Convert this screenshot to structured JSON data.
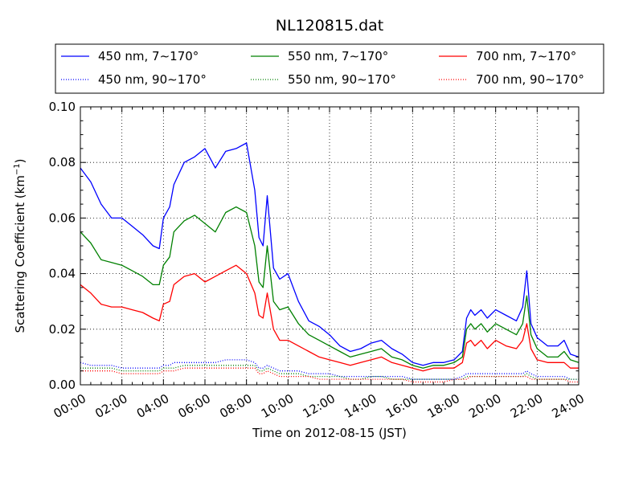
{
  "chart_data": {
    "type": "line",
    "title": "NL120815.dat",
    "xlabel": "Time on 2012-08-15 (JST)",
    "ylabel_main": "Scattering Coefficient (km",
    "ylabel_sup": "−1",
    "ylabel_end": ")",
    "xlim_hours": [
      0,
      24
    ],
    "ylim": [
      0.0,
      0.1
    ],
    "grid": true,
    "legend_position": "top",
    "x_tick_labels": [
      "00:00",
      "02:00",
      "04:00",
      "06:00",
      "08:00",
      "10:00",
      "12:00",
      "14:00",
      "16:00",
      "18:00",
      "20:00",
      "22:00",
      "24:00"
    ],
    "y_tick_labels": [
      "0.00",
      "0.02",
      "0.04",
      "0.06",
      "0.08",
      "0.10"
    ],
    "x_hours": [
      0,
      0.5,
      1,
      1.5,
      2,
      2.5,
      3,
      3.5,
      3.8,
      4,
      4.3,
      4.5,
      5,
      5.5,
      6,
      6.5,
      7,
      7.5,
      8,
      8.4,
      8.6,
      8.8,
      9,
      9.3,
      9.6,
      10,
      10.5,
      11,
      11.5,
      12,
      12.5,
      13,
      13.5,
      14,
      14.5,
      15,
      15.5,
      16,
      16.5,
      17,
      17.5,
      18,
      18.4,
      18.6,
      18.8,
      19,
      19.3,
      19.6,
      20,
      20.5,
      21,
      21.3,
      21.5,
      21.7,
      22,
      22.5,
      23,
      23.3,
      23.6,
      24
    ],
    "series": [
      {
        "name": "450 nm, 7∼170°",
        "color": "#0000ff",
        "style": "solid",
        "values": [
          0.078,
          0.073,
          0.065,
          0.06,
          0.06,
          0.057,
          0.054,
          0.05,
          0.049,
          0.06,
          0.064,
          0.072,
          0.08,
          0.082,
          0.085,
          0.078,
          0.084,
          0.085,
          0.087,
          0.07,
          0.053,
          0.05,
          0.068,
          0.042,
          0.038,
          0.04,
          0.03,
          0.023,
          0.021,
          0.018,
          0.014,
          0.012,
          0.013,
          0.015,
          0.016,
          0.013,
          0.011,
          0.008,
          0.007,
          0.008,
          0.008,
          0.009,
          0.012,
          0.024,
          0.027,
          0.025,
          0.027,
          0.024,
          0.027,
          0.025,
          0.023,
          0.028,
          0.041,
          0.022,
          0.017,
          0.014,
          0.014,
          0.016,
          0.011,
          0.01
        ]
      },
      {
        "name": "550 nm, 7∼170°",
        "color": "#008000",
        "style": "solid",
        "values": [
          0.055,
          0.051,
          0.045,
          0.044,
          0.043,
          0.041,
          0.039,
          0.036,
          0.036,
          0.043,
          0.046,
          0.055,
          0.059,
          0.061,
          0.058,
          0.055,
          0.062,
          0.064,
          0.062,
          0.05,
          0.037,
          0.035,
          0.05,
          0.03,
          0.027,
          0.028,
          0.022,
          0.018,
          0.016,
          0.014,
          0.012,
          0.01,
          0.011,
          0.012,
          0.013,
          0.01,
          0.009,
          0.007,
          0.006,
          0.007,
          0.007,
          0.008,
          0.01,
          0.02,
          0.022,
          0.02,
          0.022,
          0.019,
          0.022,
          0.02,
          0.018,
          0.022,
          0.032,
          0.018,
          0.013,
          0.01,
          0.01,
          0.012,
          0.009,
          0.008
        ]
      },
      {
        "name": "700 nm, 7∼170°",
        "color": "#ff0000",
        "style": "solid",
        "values": [
          0.036,
          0.033,
          0.029,
          0.028,
          0.028,
          0.027,
          0.026,
          0.024,
          0.023,
          0.029,
          0.03,
          0.036,
          0.039,
          0.04,
          0.037,
          0.039,
          0.041,
          0.043,
          0.04,
          0.033,
          0.025,
          0.024,
          0.033,
          0.02,
          0.016,
          0.016,
          0.014,
          0.012,
          0.01,
          0.009,
          0.008,
          0.007,
          0.008,
          0.009,
          0.01,
          0.008,
          0.007,
          0.006,
          0.005,
          0.006,
          0.006,
          0.006,
          0.008,
          0.015,
          0.016,
          0.014,
          0.016,
          0.013,
          0.016,
          0.014,
          0.013,
          0.016,
          0.022,
          0.013,
          0.009,
          0.008,
          0.008,
          0.008,
          0.006,
          0.006
        ]
      },
      {
        "name": "450 nm, 90∼170°",
        "color": "#0000ff",
        "style": "dotted",
        "values": [
          0.008,
          0.007,
          0.007,
          0.007,
          0.006,
          0.006,
          0.006,
          0.006,
          0.006,
          0.007,
          0.007,
          0.008,
          0.008,
          0.008,
          0.008,
          0.008,
          0.009,
          0.009,
          0.009,
          0.008,
          0.006,
          0.006,
          0.007,
          0.006,
          0.005,
          0.005,
          0.005,
          0.004,
          0.004,
          0.004,
          0.003,
          0.003,
          0.003,
          0.003,
          0.003,
          0.003,
          0.003,
          0.002,
          0.002,
          0.002,
          0.002,
          0.002,
          0.003,
          0.004,
          0.004,
          0.004,
          0.004,
          0.004,
          0.004,
          0.004,
          0.004,
          0.004,
          0.005,
          0.004,
          0.003,
          0.003,
          0.003,
          0.003,
          0.002,
          0.002
        ]
      },
      {
        "name": "550 nm, 90∼170°",
        "color": "#008000",
        "style": "dotted",
        "values": [
          0.006,
          0.006,
          0.006,
          0.006,
          0.005,
          0.005,
          0.005,
          0.005,
          0.005,
          0.006,
          0.006,
          0.006,
          0.007,
          0.007,
          0.007,
          0.007,
          0.007,
          0.007,
          0.007,
          0.007,
          0.005,
          0.005,
          0.006,
          0.005,
          0.004,
          0.004,
          0.004,
          0.003,
          0.003,
          0.003,
          0.003,
          0.002,
          0.002,
          0.003,
          0.003,
          0.002,
          0.002,
          0.002,
          0.002,
          0.002,
          0.002,
          0.002,
          0.002,
          0.003,
          0.003,
          0.003,
          0.003,
          0.003,
          0.003,
          0.003,
          0.003,
          0.003,
          0.004,
          0.003,
          0.002,
          0.002,
          0.002,
          0.002,
          0.002,
          0.002
        ]
      },
      {
        "name": "700 nm, 90∼170°",
        "color": "#ff0000",
        "style": "dotted",
        "values": [
          0.005,
          0.005,
          0.005,
          0.005,
          0.004,
          0.004,
          0.004,
          0.004,
          0.004,
          0.005,
          0.005,
          0.005,
          0.006,
          0.006,
          0.006,
          0.006,
          0.006,
          0.006,
          0.006,
          0.006,
          0.004,
          0.004,
          0.005,
          0.004,
          0.003,
          0.003,
          0.003,
          0.003,
          0.002,
          0.002,
          0.002,
          0.002,
          0.002,
          0.002,
          0.002,
          0.002,
          0.002,
          0.001,
          0.001,
          0.001,
          0.001,
          0.002,
          0.002,
          0.002,
          0.003,
          0.003,
          0.003,
          0.003,
          0.003,
          0.003,
          0.003,
          0.003,
          0.003,
          0.002,
          0.002,
          0.002,
          0.002,
          0.002,
          0.001,
          0.001
        ]
      }
    ]
  }
}
